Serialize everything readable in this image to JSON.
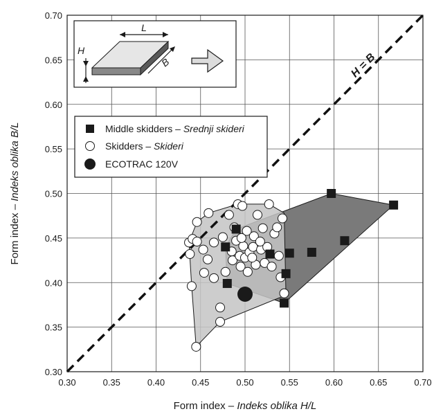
{
  "chart_data": {
    "type": "scatter",
    "xlabel": {
      "prefix": "Form index – ",
      "italic": "Indeks oblika",
      "var": "H/L"
    },
    "ylabel": {
      "prefix": "Form index – ",
      "italic": "Indeks oblika",
      "var": "B/L"
    },
    "xlim": [
      0.3,
      0.7
    ],
    "ylim": [
      0.3,
      0.7
    ],
    "xticks": [
      "0.30",
      "0.35",
      "0.40",
      "0.45",
      "0.50",
      "0.55",
      "0.60",
      "0.65",
      "0.70"
    ],
    "yticks": [
      "0.30",
      "0.35",
      "0.40",
      "0.45",
      "0.50",
      "0.55",
      "0.60",
      "0.65",
      "0.70"
    ],
    "grid": true,
    "diagonal_label": "H = B",
    "inset_labels": {
      "L": "L",
      "H": "H",
      "B": "B"
    },
    "legend": {
      "placement": "upper-left",
      "entries": [
        {
          "marker": "square",
          "text": "Middle skidders – ",
          "italic": "Srednji skideri"
        },
        {
          "marker": "open-circle",
          "text": "Skidders – ",
          "italic": "Skideri"
        },
        {
          "marker": "filled-circle",
          "text": "ECOTRAC 120V",
          "italic": ""
        }
      ]
    },
    "colors": {
      "middle_hull": "#7a7a7a",
      "skidder_hull": "#c4c4c4",
      "square": "#1a1a1a",
      "open_circle_fill": "#ffffff",
      "ecotrac": "#1a1a1a"
    },
    "series": [
      {
        "name": "Middle skidders – Srednji skideri",
        "marker": "square",
        "points": [
          [
            0.478,
            0.44
          ],
          [
            0.49,
            0.46
          ],
          [
            0.48,
            0.399
          ],
          [
            0.528,
            0.432
          ],
          [
            0.544,
            0.377
          ],
          [
            0.546,
            0.41
          ],
          [
            0.55,
            0.433
          ],
          [
            0.575,
            0.434
          ],
          [
            0.597,
            0.5
          ],
          [
            0.612,
            0.447
          ],
          [
            0.667,
            0.487
          ]
        ],
        "hull": [
          [
            0.478,
            0.44
          ],
          [
            0.49,
            0.46
          ],
          [
            0.597,
            0.5
          ],
          [
            0.667,
            0.487
          ],
          [
            0.544,
            0.377
          ],
          [
            0.48,
            0.399
          ]
        ]
      },
      {
        "name": "Skidders – Skideri",
        "marker": "open-circle",
        "points": [
          [
            0.445,
            0.328
          ],
          [
            0.44,
            0.396
          ],
          [
            0.438,
            0.432
          ],
          [
            0.437,
            0.445
          ],
          [
            0.441,
            0.449
          ],
          [
            0.446,
            0.446
          ],
          [
            0.446,
            0.468
          ],
          [
            0.453,
            0.437
          ],
          [
            0.458,
            0.426
          ],
          [
            0.459,
            0.478
          ],
          [
            0.454,
            0.411
          ],
          [
            0.465,
            0.445
          ],
          [
            0.465,
            0.405
          ],
          [
            0.472,
            0.372
          ],
          [
            0.472,
            0.356
          ],
          [
            0.475,
            0.451
          ],
          [
            0.478,
            0.412
          ],
          [
            0.482,
            0.476
          ],
          [
            0.485,
            0.435
          ],
          [
            0.486,
            0.425
          ],
          [
            0.488,
            0.462
          ],
          [
            0.49,
            0.447
          ],
          [
            0.492,
            0.488
          ],
          [
            0.494,
            0.43
          ],
          [
            0.495,
            0.418
          ],
          [
            0.497,
            0.486
          ],
          [
            0.498,
            0.441
          ],
          [
            0.5,
            0.428
          ],
          [
            0.502,
            0.458
          ],
          [
            0.503,
            0.412
          ],
          [
            0.505,
            0.434
          ],
          [
            0.509,
            0.44
          ],
          [
            0.51,
            0.452
          ],
          [
            0.512,
            0.42
          ],
          [
            0.514,
            0.476
          ],
          [
            0.518,
            0.437
          ],
          [
            0.52,
            0.461
          ],
          [
            0.522,
            0.422
          ],
          [
            0.525,
            0.44
          ],
          [
            0.527,
            0.488
          ],
          [
            0.53,
            0.418
          ],
          [
            0.533,
            0.455
          ],
          [
            0.536,
            0.462
          ],
          [
            0.538,
            0.43
          ],
          [
            0.54,
            0.406
          ],
          [
            0.542,
            0.472
          ],
          [
            0.544,
            0.388
          ],
          [
            0.508,
            0.428
          ],
          [
            0.517,
            0.446
          ],
          [
            0.496,
            0.45
          ]
        ],
        "hull": [
          [
            0.445,
            0.328
          ],
          [
            0.44,
            0.396
          ],
          [
            0.437,
            0.445
          ],
          [
            0.446,
            0.468
          ],
          [
            0.459,
            0.478
          ],
          [
            0.492,
            0.488
          ],
          [
            0.527,
            0.488
          ],
          [
            0.544,
            0.478
          ],
          [
            0.546,
            0.386
          ],
          [
            0.472,
            0.356
          ]
        ]
      },
      {
        "name": "ECOTRAC 120V",
        "marker": "filled-circle",
        "points": [
          [
            0.5,
            0.387
          ]
        ]
      }
    ]
  }
}
